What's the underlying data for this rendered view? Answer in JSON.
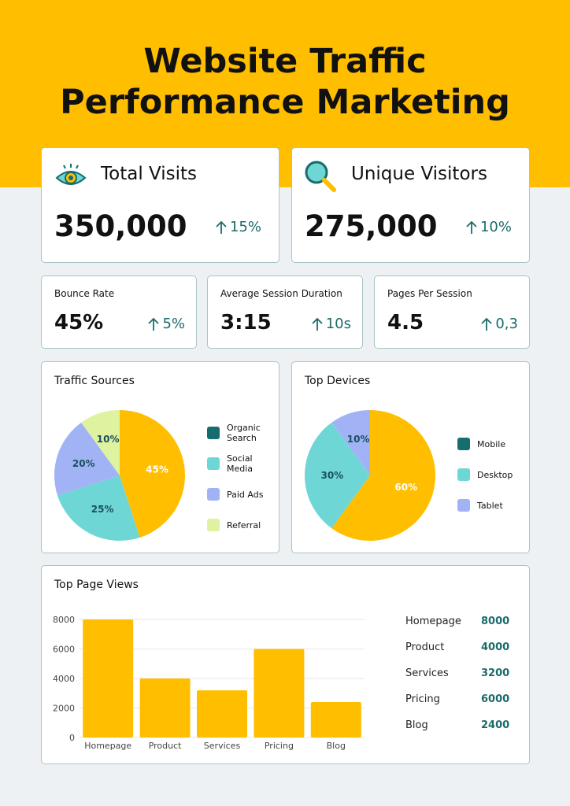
{
  "title_lines": [
    "Website Traffic",
    "Performance Marketing"
  ],
  "kpis": [
    {
      "label": "Total Visits",
      "value": "350,000",
      "change": "15%"
    },
    {
      "label": "Unique Visitors",
      "value": "275,000",
      "change": "10%"
    }
  ],
  "stats": [
    {
      "label": "Bounce Rate",
      "value": "45%",
      "change": "5%"
    },
    {
      "label": "Average Session Duration",
      "value": "3:15",
      "change": "10s"
    },
    {
      "label": "Pages Per Session",
      "value": "4.5",
      "change": "0,3"
    }
  ],
  "chart_data": [
    {
      "type": "pie",
      "title": "Traffic Sources",
      "categories": [
        "Organic Search",
        "Social Media",
        "Paid Ads",
        "Referral"
      ],
      "values": [
        45,
        25,
        20,
        10
      ],
      "value_labels": [
        "45%",
        "25%",
        "20%",
        "10%"
      ],
      "colors": [
        "#ffbe00",
        "#6fd6d6",
        "#a1b3f5",
        "#dff2a0"
      ],
      "legend_colors": [
        "#156d6d",
        "#6fd6d6",
        "#a1b3f5",
        "#dff2a0"
      ]
    },
    {
      "type": "pie",
      "title": "Top Devices",
      "categories": [
        "Mobile",
        "Desktop",
        "Tablet"
      ],
      "values": [
        60,
        30,
        10
      ],
      "value_labels": [
        "60%",
        "30%",
        "10%"
      ],
      "colors": [
        "#ffbe00",
        "#6fd6d6",
        "#a1b3f5"
      ],
      "legend_colors": [
        "#156d6d",
        "#6fd6d6",
        "#a1b3f5"
      ]
    },
    {
      "type": "bar",
      "title": "Top Page Views",
      "categories": [
        "Homepage",
        "Product",
        "Services",
        "Pricing",
        "Blog"
      ],
      "values": [
        8000,
        4000,
        3200,
        6000,
        2400
      ],
      "color": "#ffbe00",
      "ylim": [
        0,
        8000
      ],
      "yticks": [
        0,
        2000,
        4000,
        6000,
        8000
      ],
      "grid": true
    }
  ]
}
